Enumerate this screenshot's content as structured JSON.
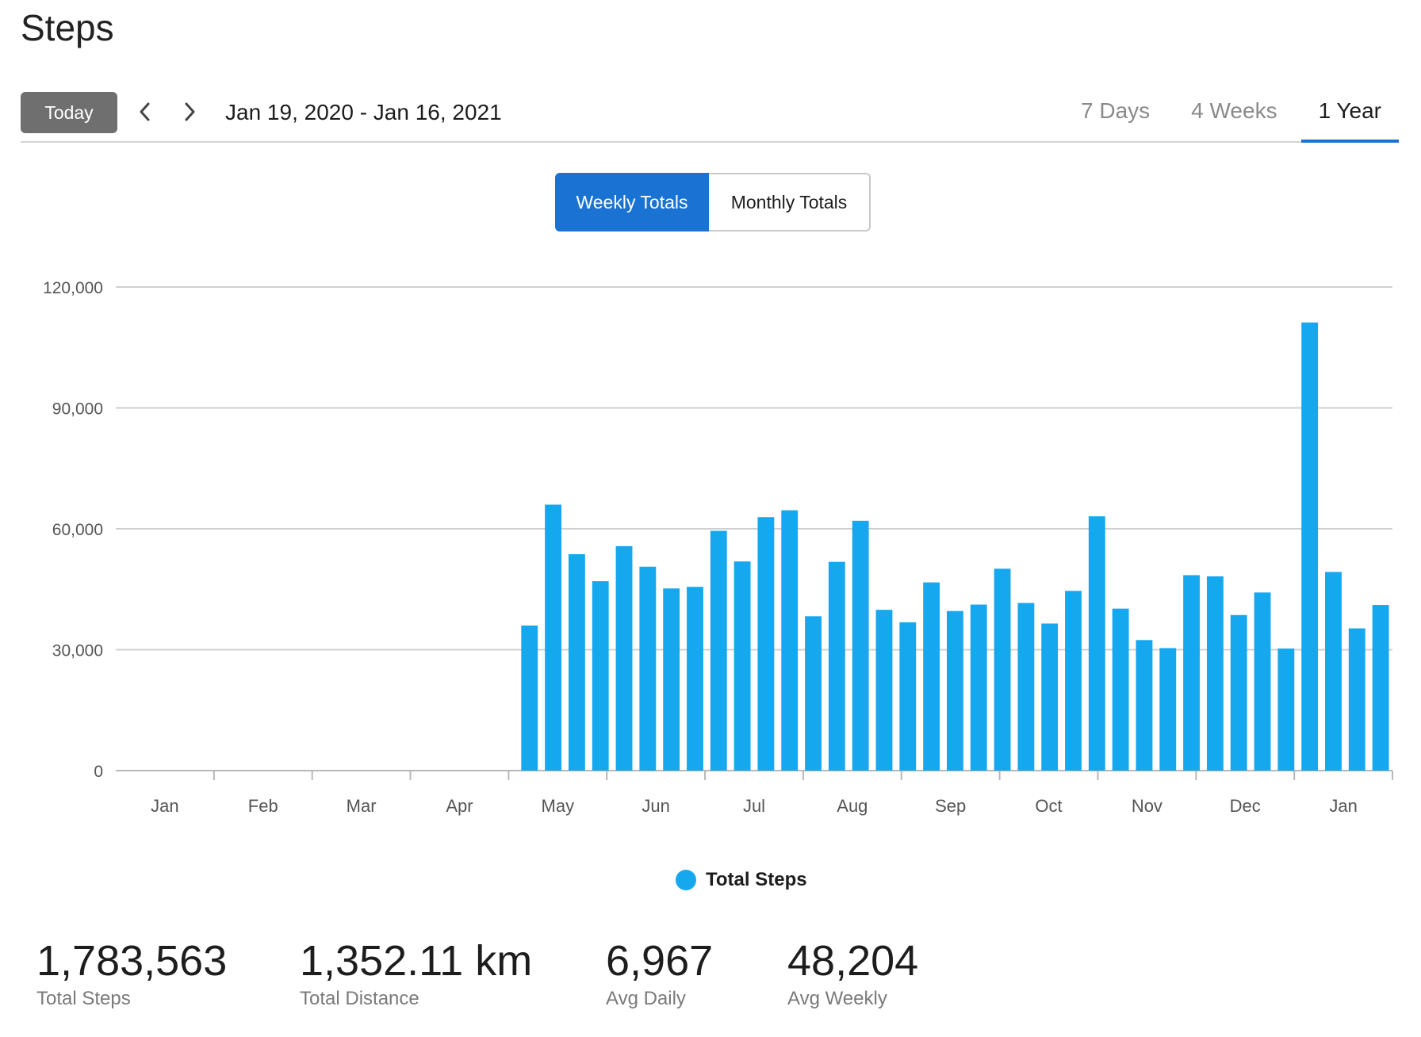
{
  "page": {
    "title": "Steps"
  },
  "toolbar": {
    "today_label": "Today",
    "date_range": "Jan 19, 2020 - Jan 16, 2021",
    "prev_icon": "chevron-left-icon",
    "next_icon": "chevron-right-icon",
    "range_tabs": [
      {
        "label": "7 Days",
        "active": false
      },
      {
        "label": "4 Weeks",
        "active": false
      },
      {
        "label": "1 Year",
        "active": true
      }
    ]
  },
  "toggle": {
    "weekly_label": "Weekly Totals",
    "monthly_label": "Monthly Totals",
    "selected": "Weekly Totals"
  },
  "colors": {
    "bar": "#16a8ee",
    "accent": "#1a73d2",
    "today_button": "#6f6f6f"
  },
  "chart_data": {
    "type": "bar",
    "ylim": [
      0,
      120000
    ],
    "yticks": [
      0,
      30000,
      60000,
      90000,
      120000
    ],
    "ytick_labels": [
      "0",
      "30,000",
      "60,000",
      "90,000",
      "120,000"
    ],
    "month_labels": [
      "Jan",
      "Feb",
      "Mar",
      "Apr",
      "May",
      "Jun",
      "Jul",
      "Aug",
      "Sep",
      "Oct",
      "Nov",
      "Dec",
      "Jan"
    ],
    "grid": true,
    "legend": "bottom-center",
    "series": [
      {
        "name": "Total Steps",
        "values": [
          0,
          0,
          0,
          0,
          0,
          0,
          0,
          0,
          0,
          0,
          0,
          0,
          0,
          0,
          0,
          0,
          0,
          36000,
          66000,
          53700,
          47000,
          55700,
          50600,
          45200,
          45600,
          59500,
          51900,
          62900,
          64600,
          38300,
          51800,
          62000,
          39900,
          36800,
          46700,
          39600,
          41200,
          50100,
          41600,
          36500,
          44600,
          63100,
          40200,
          32400,
          30400,
          48500,
          48200,
          38600,
          44200,
          30300,
          111200,
          49300,
          35300,
          41100
        ]
      }
    ]
  },
  "stats": [
    {
      "value": "1,783,563",
      "label": "Total Steps"
    },
    {
      "value": "1,352.11 km",
      "label": "Total Distance"
    },
    {
      "value": "6,967",
      "label": "Avg Daily"
    },
    {
      "value": "48,204",
      "label": "Avg Weekly"
    }
  ]
}
